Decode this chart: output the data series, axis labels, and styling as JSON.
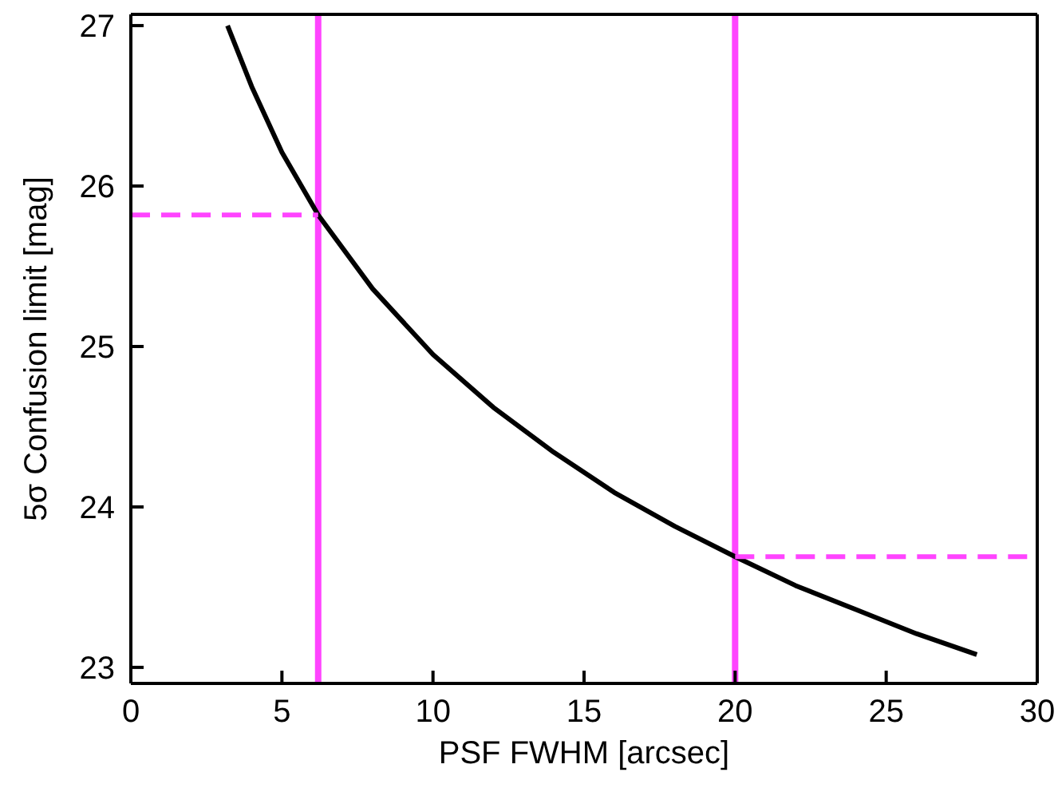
{
  "chart_data": {
    "type": "line",
    "xlabel": "PSF FWHM [arcsec]",
    "ylabel": "5σ Confusion limit [mag]",
    "xlim": [
      0,
      30
    ],
    "xticks": [
      0,
      5,
      10,
      15,
      20,
      25,
      30
    ],
    "ylim": [
      22.9,
      27.07
    ],
    "yticks": [
      23,
      24,
      25,
      26,
      27
    ],
    "marker": "none",
    "series": [
      {
        "color": "#000000",
        "line_style": "solid",
        "x": [
          3.2,
          4,
          5,
          6.2,
          8,
          10,
          12,
          14,
          16,
          18,
          20,
          22,
          24,
          26,
          28
        ],
        "values": [
          27.0,
          26.62,
          26.21,
          25.82,
          25.36,
          24.95,
          24.62,
          24.34,
          24.09,
          23.88,
          23.69,
          23.51,
          23.36,
          23.21,
          23.08
        ]
      },
      {
        "color": "#ff44ff",
        "line_style": "dashed",
        "x": [
          0,
          6.2
        ],
        "values": [
          25.82,
          25.82
        ]
      },
      {
        "color": "#ff44ff",
        "line_style": "dashed",
        "x": [
          20,
          30
        ],
        "values": [
          23.69,
          23.69
        ]
      }
    ],
    "ref_lines": [
      {
        "axis": "x",
        "value": 6.2,
        "color": "#ff44ff"
      },
      {
        "axis": "x",
        "value": 20,
        "color": "#ff44ff"
      }
    ]
  }
}
